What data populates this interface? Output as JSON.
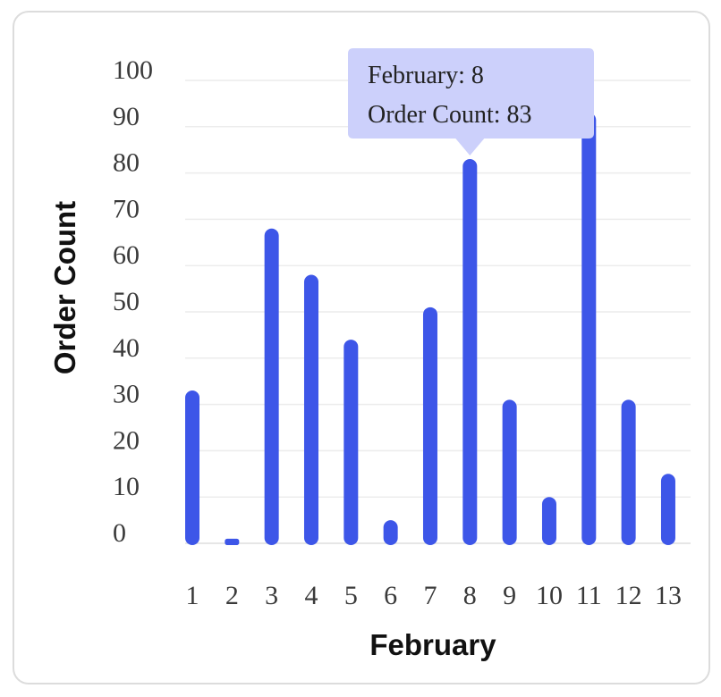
{
  "chart_data": {
    "type": "bar",
    "categories": [
      "1",
      "2",
      "3",
      "4",
      "5",
      "6",
      "7",
      "8",
      "9",
      "10",
      "11",
      "12",
      "13"
    ],
    "values": [
      33,
      1,
      68,
      58,
      44,
      5,
      51,
      83,
      31,
      10,
      93,
      31,
      15
    ],
    "xlabel": "February",
    "ylabel": "Order Count",
    "ylim": [
      0,
      100
    ],
    "yticks": [
      0,
      10,
      20,
      30,
      40,
      50,
      60,
      70,
      80,
      90,
      100
    ],
    "grid": true,
    "bar_color": "#3d56e8",
    "tooltip": {
      "line1": "February: 8",
      "line2": "Order Count: 83",
      "background": "#ccd0fb",
      "category_index": 7
    }
  }
}
